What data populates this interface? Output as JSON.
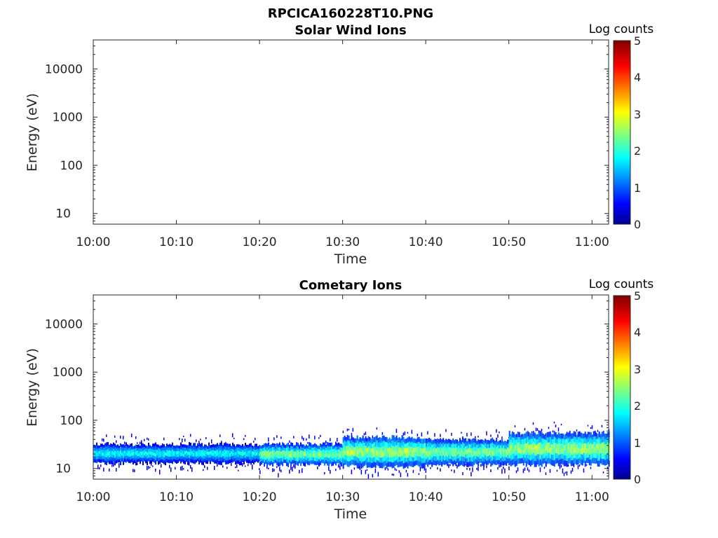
{
  "figure": {
    "title": "RPCICA160228T10.PNG"
  },
  "chart_data": [
    {
      "type": "heatmap",
      "title": "Solar Wind Ions",
      "xlabel": "Time",
      "ylabel": "Energy (eV)",
      "x_ticks": [
        "10:00",
        "10:10",
        "10:20",
        "10:30",
        "10:40",
        "10:50",
        "11:00"
      ],
      "xlim": [
        "10:00",
        "11:02"
      ],
      "y_scale": "log",
      "y_ticks": [
        10,
        100,
        1000,
        10000
      ],
      "y_tick_labels": [
        "10",
        "100",
        "1000",
        "10000"
      ],
      "ylim": [
        6,
        40000
      ],
      "colorbar": {
        "label": "Log counts",
        "range": [
          0,
          5
        ],
        "ticks": [
          "0",
          "1",
          "2",
          "3",
          "4",
          "5"
        ],
        "colormap": "jet"
      },
      "bands": []
    },
    {
      "type": "heatmap",
      "title": "Cometary Ions",
      "xlabel": "Time",
      "ylabel": "Energy (eV)",
      "x_ticks": [
        "10:00",
        "10:10",
        "10:20",
        "10:30",
        "10:40",
        "10:50",
        "11:00"
      ],
      "xlim": [
        "10:00",
        "11:02"
      ],
      "y_scale": "log",
      "y_ticks": [
        10,
        100,
        1000,
        10000
      ],
      "y_tick_labels": [
        "10",
        "100",
        "1000",
        "10000"
      ],
      "ylim": [
        6,
        40000
      ],
      "colorbar": {
        "label": "Log counts",
        "range": [
          0,
          5
        ],
        "ticks": [
          "0",
          "1",
          "2",
          "3",
          "4",
          "5"
        ],
        "colormap": "jet"
      },
      "bands": [
        {
          "t_start": "10:00",
          "t_end": "10:20",
          "e_low": 13,
          "e_high": 32,
          "peak_log_counts": 2.0
        },
        {
          "t_start": "10:20",
          "t_end": "10:30",
          "e_low": 12,
          "e_high": 32,
          "peak_log_counts": 2.6
        },
        {
          "t_start": "10:30",
          "t_end": "10:40",
          "e_low": 11,
          "e_high": 45,
          "peak_log_counts": 2.8
        },
        {
          "t_start": "10:40",
          "t_end": "10:50",
          "e_low": 12,
          "e_high": 40,
          "peak_log_counts": 2.6
        },
        {
          "t_start": "10:50",
          "t_end": "11:02",
          "e_low": 12,
          "e_high": 55,
          "peak_log_counts": 2.8
        }
      ]
    }
  ]
}
